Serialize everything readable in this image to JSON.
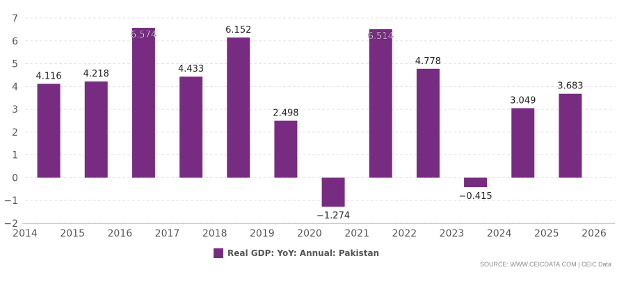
{
  "chart_data": {
    "type": "bar",
    "series": [
      {
        "name": "Real GDP: YoY: Annual: Pakistan",
        "color": "#772c82",
        "x": [
          2014,
          2015,
          2016,
          2017,
          2018,
          2019,
          2020,
          2021,
          2022,
          2023,
          2024,
          2025
        ],
        "values": [
          4.116,
          4.218,
          6.574,
          4.433,
          6.152,
          2.498,
          -1.274,
          6.514,
          4.778,
          -0.415,
          3.049,
          3.683
        ],
        "labels": [
          "4.116",
          "4.218",
          "6.574",
          "4.433",
          "6.152",
          "2.498",
          "−1.274",
          "6.514",
          "4.778",
          "−0.415",
          "3.049",
          "3.683"
        ]
      }
    ],
    "x_ticks": [
      "2014",
      "2015",
      "2016",
      "2017",
      "2018",
      "2019",
      "2020",
      "2021",
      "2022",
      "2023",
      "2024",
      "2025",
      "2026"
    ],
    "y_ticks": [
      "7",
      "6",
      "5",
      "4",
      "3",
      "2",
      "1",
      "0",
      "−1",
      "−2"
    ],
    "xlim": [
      2014,
      2026
    ],
    "ylim": [
      -2,
      7
    ],
    "grid": "horizontal dashed",
    "legend_position": "bottom-center",
    "title": "",
    "xlabel": "",
    "ylabel": ""
  },
  "legend": {
    "label": "Real GDP: YoY: Annual: Pakistan",
    "color": "#772c82"
  },
  "source": "SOURCE: WWW.CEICDATA.COM | CEIC Data"
}
